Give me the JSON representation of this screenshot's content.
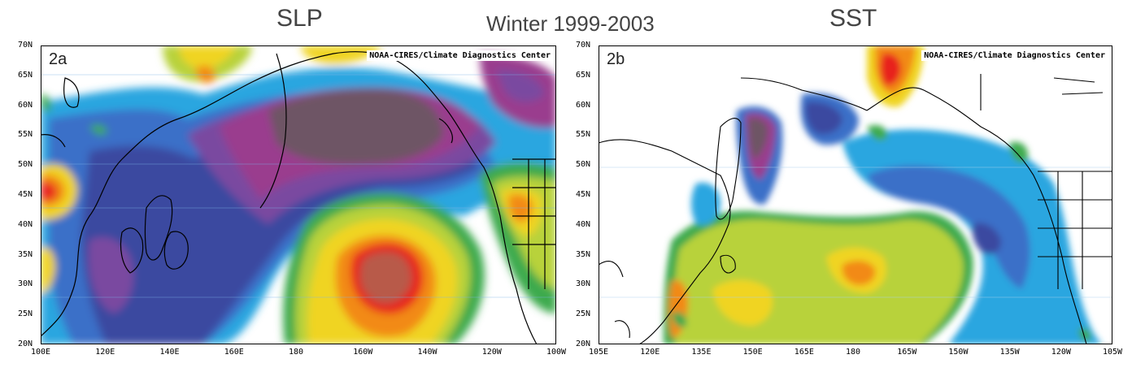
{
  "title": "Winter 1999-2003",
  "panels": [
    {
      "id": "2a",
      "title": "SLP",
      "label": "2a",
      "credit": "NOAA-CIRES/Climate Diagnostics Center",
      "lat_ticks": [
        "70N",
        "65N",
        "60N",
        "55N",
        "50N",
        "45N",
        "40N",
        "35N",
        "30N",
        "25N",
        "20N"
      ],
      "lon_ticks": [
        "100E",
        "120E",
        "140E",
        "160E",
        "180",
        "160W",
        "140W",
        "120W",
        "100W"
      ]
    },
    {
      "id": "2b",
      "title": "SST",
      "label": "2b",
      "credit": "NOAA-CIRES/Climate Diagnostics Center",
      "lat_ticks": [
        "70N",
        "65N",
        "60N",
        "55N",
        "50N",
        "45N",
        "40N",
        "35N",
        "30N",
        "25N",
        "20N"
      ],
      "lon_ticks": [
        "105E",
        "120E",
        "135E",
        "150E",
        "165E",
        "180",
        "165W",
        "150W",
        "135W",
        "120W",
        "105W"
      ]
    }
  ],
  "colors": {
    "darkest": "#6e5565",
    "purple": "#9a3e8e",
    "violet": "#7a4aa0",
    "navy": "#3a4aa0",
    "blue": "#3a70c8",
    "cyan": "#2aa6e0",
    "green": "#3caa4e",
    "lime": "#b8d23a",
    "yellow": "#f0d420",
    "orange": "#f28a18",
    "red": "#e8201e",
    "brown": "#b85a48"
  }
}
